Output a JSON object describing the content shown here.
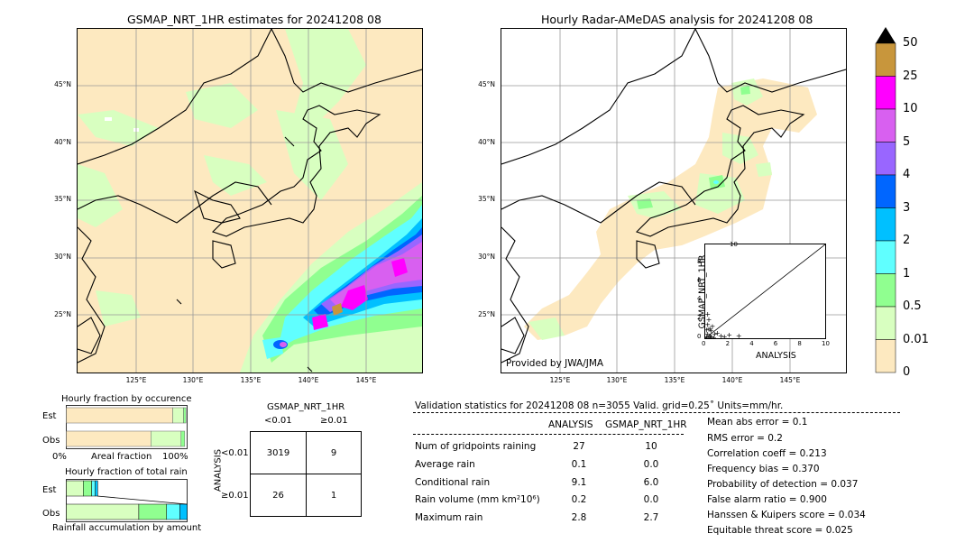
{
  "left_map": {
    "title": "GSMAP_NRT_1HR estimates for 20241208 08",
    "lat_labels": [
      "45°N",
      "40°N",
      "35°N",
      "30°N",
      "25°N"
    ],
    "lon_labels": [
      "125°E",
      "130°E",
      "135°E",
      "140°E",
      "145°E"
    ]
  },
  "right_map": {
    "title": "Hourly Radar-AMeDAS analysis for 20241208 08",
    "lat_labels": [
      "45°N",
      "40°N",
      "35°N",
      "30°N",
      "25°N"
    ],
    "lon_labels": [
      "125°E",
      "130°E",
      "135°E",
      "140°E",
      "145°E"
    ],
    "credit": "Provided by JWA/JMA"
  },
  "colorbar": {
    "labels": [
      "50",
      "25",
      "10",
      "5",
      "4",
      "3",
      "2",
      "1",
      "0.5",
      "0.01",
      "0"
    ],
    "colors": [
      "#c8963c",
      "#ff00ff",
      "#d860f0",
      "#9966ff",
      "#0066ff",
      "#00c0ff",
      "#60ffff",
      "#90ff90",
      "#d8ffc0",
      "#fde9c0"
    ]
  },
  "chart_data": [
    {
      "type": "scatter",
      "xlabel": "ANALYSIS",
      "ylabel": "GSMAP_NRT_1HR",
      "xlim": [
        0,
        10
      ],
      "ylim": [
        0,
        10
      ],
      "ticks": [
        "0",
        "2",
        "4",
        "6",
        "8",
        "10"
      ],
      "reference_line": "y=x",
      "x": [
        0.1,
        0.2,
        0.3,
        0.4,
        0.5,
        0.6,
        0.2,
        0.3,
        0.8,
        1.0,
        1.3,
        0.5,
        0.2,
        0.4,
        0.7,
        2.0,
        2.8,
        0.1,
        1.6,
        0.3
      ],
      "y": [
        0.2,
        0.5,
        1.0,
        0.3,
        0.8,
        1.3,
        1.5,
        2.0,
        0.5,
        0.6,
        0.3,
        0.2,
        2.6,
        1.0,
        0.1,
        0.4,
        0.3,
        0.9,
        0.2,
        0.1
      ]
    },
    {
      "type": "bar",
      "title": "Hourly fraction by occurence",
      "categories": [
        "Est",
        "Obs"
      ],
      "xlabels": [
        "0%",
        "Areal fraction",
        "100%"
      ],
      "series": [
        {
          "values": [
            0.88,
            0.7
          ]
        },
        {
          "values": [
            0.09,
            0.25
          ]
        },
        {
          "values": [
            0.02,
            0.03
          ]
        }
      ],
      "colors": [
        "#fde9c0",
        "#d8ffc0",
        "#90ff90"
      ]
    },
    {
      "type": "bar",
      "title": "Hourly fraction of total rain",
      "categories": [
        "Est",
        "Obs"
      ],
      "xlabel": "Rainfall accumulation by amount",
      "est": [
        0.14,
        0.07,
        0.03,
        0.02
      ],
      "obs": [
        0.6,
        0.23,
        0.11,
        0.06
      ],
      "colors": [
        "#d8ffc0",
        "#90ff90",
        "#60ffff",
        "#00c0ff"
      ]
    },
    {
      "type": "table",
      "title": "GSMAP_NRT_1HR",
      "col_headers": [
        "<0.01",
        "≥0.01"
      ],
      "row_axis": "ANALYSIS",
      "row_headers": [
        "<0.01",
        "≥0.01"
      ],
      "cells": [
        [
          "3019",
          "9"
        ],
        [
          "26",
          "1"
        ]
      ]
    }
  ],
  "validation": {
    "header": "Validation statistics for 20241208 08  n=3055 Valid. grid=0.25˚ Units=mm/hr.",
    "col1": "ANALYSIS",
    "col2": "GSMAP_NRT_1HR",
    "rows": [
      {
        "label": "Num of gridpoints raining",
        "a": "27",
        "g": "10"
      },
      {
        "label": "Average rain",
        "a": "0.1",
        "g": "0.0"
      },
      {
        "label": "Conditional rain",
        "a": "9.1",
        "g": "6.0"
      },
      {
        "label": "Rain volume (mm km²10⁶)",
        "a": "0.2",
        "g": "0.0"
      },
      {
        "label": "Maximum rain",
        "a": "2.8",
        "g": "2.7"
      }
    ],
    "scores": [
      "Mean abs error =    0.1",
      "RMS error =    0.2",
      "Correlation coeff =  0.213",
      "Frequency bias =  0.370",
      "Probability of detection =  0.037",
      "False alarm ratio =  0.900",
      "Hanssen & Kuipers score =  0.034",
      "Equitable threat score =  0.025"
    ]
  }
}
